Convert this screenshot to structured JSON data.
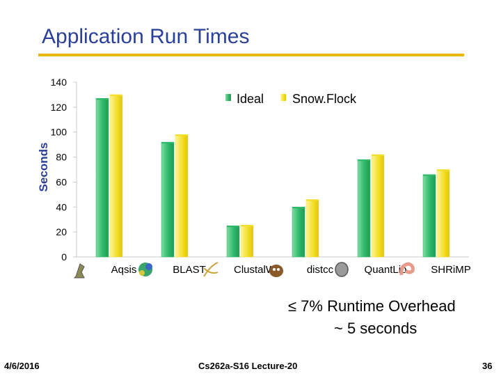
{
  "slide": {
    "title": "Application Run Times",
    "note_line1": "≤ 7% Runtime Overhead",
    "note_line2": "~ 5 seconds",
    "footer_date": "4/6/2016",
    "footer_course": "Cs262a-S16 Lecture-20",
    "footer_page": "36"
  },
  "colors": {
    "title": "#2a3f9a",
    "rule": "#e8b800",
    "ideal": "#2fb86a",
    "snowflock": "#f3df2a"
  },
  "chart_data": {
    "type": "bar",
    "categories": [
      "Aqsis",
      "BLAST",
      "ClustalW",
      "distcc",
      "QuantLib",
      "SHRiMP"
    ],
    "category_icons": [
      "lamp-icon",
      "protein-icon",
      "dna-icon",
      "cow-icon",
      "coin-icon",
      "shrimp-icon"
    ],
    "series": [
      {
        "name": "Ideal",
        "values": [
          127,
          92,
          25,
          40,
          78,
          66
        ]
      },
      {
        "name": "Snow.Flock",
        "values": [
          130,
          98,
          25.5,
          46,
          82,
          70
        ]
      }
    ],
    "ylabel": "Seconds",
    "xlabel": "",
    "ylim": [
      0,
      140
    ],
    "yticks": [
      0,
      20,
      40,
      60,
      80,
      100,
      120,
      140
    ],
    "legend_position": "top-right",
    "grid": false
  }
}
